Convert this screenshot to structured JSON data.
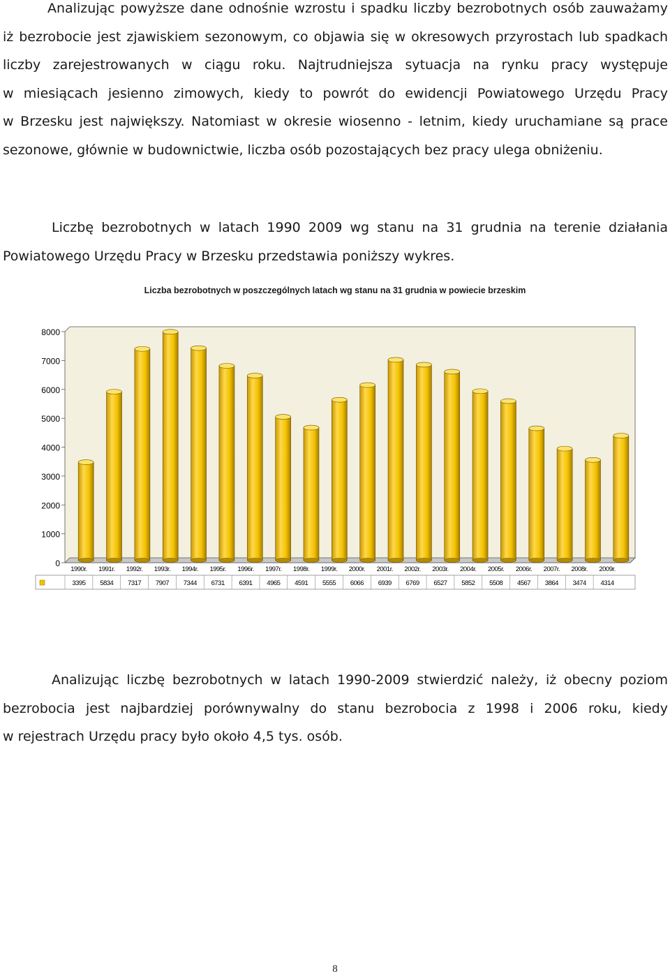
{
  "paragraph1": {
    "lines": [
      "Analizując powyższe dane odnośnie wzrostu i spadku liczby bezrobotnych osób  zauważamy",
      "iż bezrobocie jest zjawiskiem sezonowym, co objawia się w okresowych przyrostach lub spadkach",
      "liczby  zarejestrowanych  w  ciągu  roku.  Najtrudniejsza  sytuacja  na  rynku  pracy  występuje",
      "w  miesiącach  jesienno  zimowych,  kiedy  to  powrót  do  ewidencji  Powiatowego  Urzędu  Pracy",
      "w Brzesku jest największy. Natomiast w okresie wiosenno - letnim, kiedy uruchamiane są prace",
      "sezonowe, głównie w budownictwie, liczba osób pozostających bez pracy ulega obniżeniu."
    ]
  },
  "paragraph2": {
    "lines": [
      "Liczbę  bezrobotnych  w  latach  1990 2009  wg  stanu  na  31  grudnia  na  terenie  działania",
      "Powiatowego Urzędu Pracy w Brzesku przedstawia poniższy wykres."
    ]
  },
  "chart_data": {
    "type": "bar",
    "title": "Liczba bezrobotnych w poszczególnych latach wg stanu na 31 grudnia w powiecie brzeskim",
    "categories": [
      "1990r.",
      "1991r.",
      "1992r.",
      "1993r.",
      "1994r.",
      "1995r.",
      "1996r.",
      "1997r.",
      "1998r.",
      "1999r.",
      "2000r.",
      "2001r.",
      "2002r.",
      "2003r.",
      "2004r.",
      "2005r.",
      "2006r.",
      "2007r.",
      "2008r.",
      "2009r."
    ],
    "values": [
      3395,
      5834,
      7317,
      7907,
      7344,
      6731,
      6391,
      4965,
      4591,
      5555,
      6066,
      6939,
      6769,
      6527,
      5852,
      5508,
      4567,
      3864,
      3474,
      4314
    ],
    "value_labels": [
      "3395",
      "5834",
      "7317",
      "7907",
      "7344",
      "6731",
      "6391",
      "4965",
      "4591",
      "5555",
      "6066",
      "6939",
      "6769",
      "6527",
      "5852",
      "5508",
      "4567",
      "3864",
      "3474",
      "4314"
    ],
    "y_ticks": [
      "0",
      "1000",
      "2000",
      "3000",
      "4000",
      "5000",
      "6000",
      "7000",
      "8000"
    ],
    "ylim": [
      0,
      8000
    ],
    "xlabel": "",
    "ylabel": "",
    "grid": false,
    "bar_color": "#f2c200",
    "data_table": true
  },
  "paragraph3": {
    "lines": [
      "Analizując  liczbę  bezrobotnych  w  latach  1990-2009  stwierdzić  należy,  iż  obecny  poziom",
      "bezrobocia  jest  najbardziej  porównywalny  do  stanu  bezrobocia  z  1998  i  2006  roku,  kiedy",
      "w rejestrach Urzędu pracy było około 4,5 tys. osób."
    ]
  },
  "page_number": "8"
}
